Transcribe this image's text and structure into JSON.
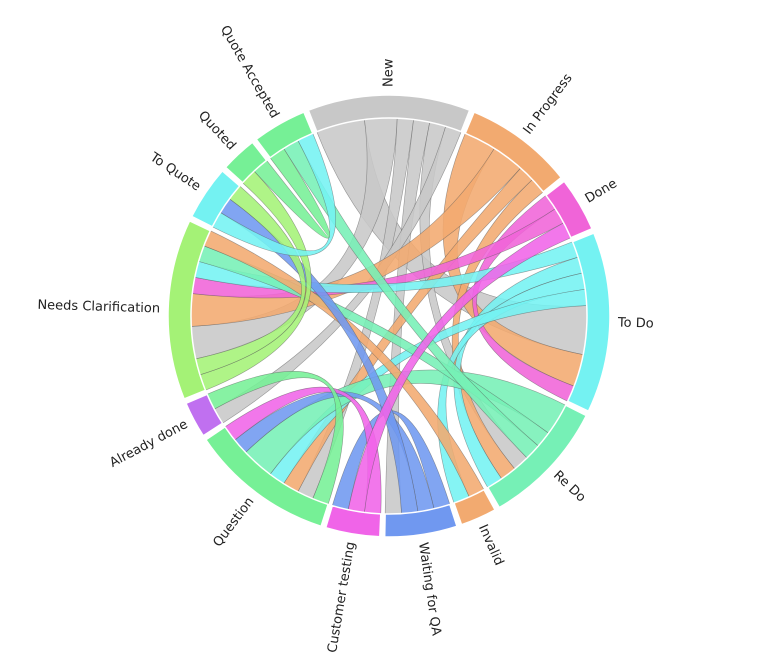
{
  "chart_data": {
    "type": "chord",
    "title": "",
    "groups": [
      {
        "name": "New",
        "color": "#c8c8c8"
      },
      {
        "name": "In Progress",
        "color": "#f2aa70"
      },
      {
        "name": "Done",
        "color": "#f064d8"
      },
      {
        "name": "To Do",
        "color": "#74f2f2"
      },
      {
        "name": "Re Do",
        "color": "#76f0b6"
      },
      {
        "name": "Invalid",
        "color": "#f2aa70"
      },
      {
        "name": "Waiting for QA",
        "color": "#7098f0"
      },
      {
        "name": "Customer testing",
        "color": "#f064e8"
      },
      {
        "name": "Question",
        "color": "#76f096"
      },
      {
        "name": "Already done",
        "color": "#c070f0"
      },
      {
        "name": "Needs Clarification",
        "color": "#a4f276"
      },
      {
        "name": "To Quote",
        "color": "#74f2f2"
      },
      {
        "name": "Quoted",
        "color": "#76f096"
      },
      {
        "name": "Quote Accepted",
        "color": "#76f096"
      }
    ],
    "flows": [
      [
        "New",
        "To Do",
        3
      ],
      [
        "New",
        "Needs Clarification",
        2
      ],
      [
        "New",
        "Question",
        1
      ],
      [
        "New",
        "Waiting for QA",
        1
      ],
      [
        "New",
        "Re Do",
        1
      ],
      [
        "New",
        "Already done",
        1
      ],
      [
        "In Progress",
        "To Do",
        2
      ],
      [
        "In Progress",
        "Needs Clarification",
        2
      ],
      [
        "In Progress",
        "Question",
        1
      ],
      [
        "In Progress",
        "Re Do",
        1
      ],
      [
        "Done",
        "To Do",
        1
      ],
      [
        "Done",
        "Needs Clarification",
        1
      ],
      [
        "To Do",
        "Needs Clarification",
        1
      ],
      [
        "To Do",
        "Re Do",
        1
      ],
      [
        "To Do",
        "Invalid",
        1
      ],
      [
        "To Do",
        "Question",
        1
      ],
      [
        "Re Do",
        "Question",
        2
      ],
      [
        "Re Do",
        "Needs Clarification",
        1
      ],
      [
        "Re Do",
        "Quote Accepted",
        1
      ],
      [
        "Invalid",
        "Needs Clarification",
        1
      ],
      [
        "Waiting for QA",
        "Customer testing",
        1
      ],
      [
        "Waiting for QA",
        "Question",
        1
      ],
      [
        "Waiting for QA",
        "To Quote",
        1
      ],
      [
        "Customer testing",
        "Question",
        1
      ],
      [
        "Customer testing",
        "Done",
        1
      ],
      [
        "Question",
        "Already done",
        1
      ],
      [
        "Needs Clarification",
        "Quoted",
        1
      ],
      [
        "Needs Clarification",
        "To Quote",
        1
      ],
      [
        "To Quote",
        "Quote Accepted",
        1
      ],
      [
        "Quote Accepted",
        "Quoted",
        1
      ]
    ]
  }
}
